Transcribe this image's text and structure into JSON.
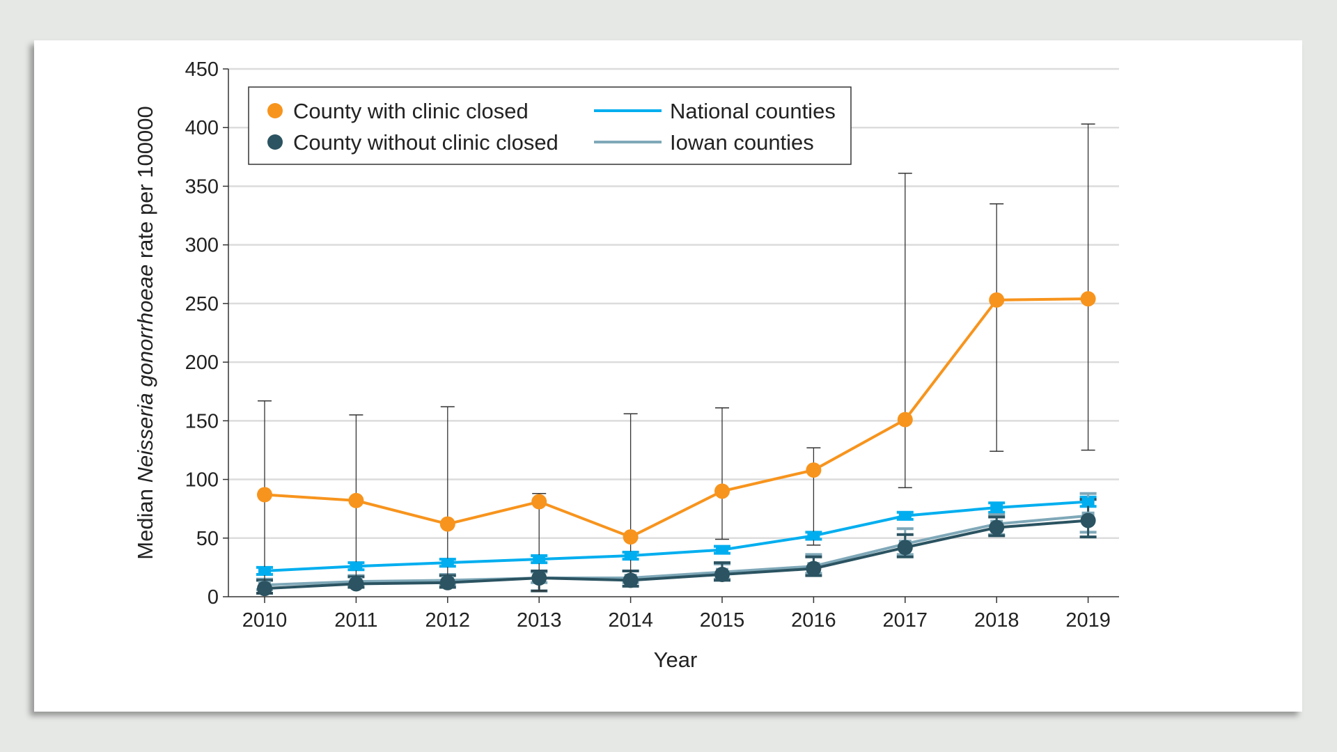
{
  "chart_data": {
    "type": "line",
    "title": "",
    "xlabel": "Year",
    "ylabel_prefix": "Median ",
    "ylabel_italic": "Neisseria gonorrhoeae",
    "ylabel_suffix": " rate per 100000",
    "x": [
      "2010",
      "2011",
      "2012",
      "2013",
      "2014",
      "2015",
      "2016",
      "2017",
      "2018",
      "2019"
    ],
    "ylim": [
      0,
      450
    ],
    "yticks": [
      0,
      50,
      100,
      150,
      200,
      250,
      300,
      350,
      400,
      450
    ],
    "grid": true,
    "legend_position": "top-left",
    "series": [
      {
        "name": "National counties",
        "style": "line-square",
        "color": "#00aeef",
        "values": [
          22,
          26,
          29,
          32,
          35,
          40,
          52,
          69,
          76,
          81
        ],
        "lower": [
          19,
          23,
          26,
          29,
          32,
          37,
          49,
          66,
          72,
          77
        ],
        "upper": [
          25,
          29,
          32,
          35,
          38,
          43,
          55,
          72,
          80,
          85
        ]
      },
      {
        "name": "Iowan counties",
        "style": "line-square",
        "color": "#7fa8b8",
        "values": [
          10,
          13,
          14,
          16,
          16,
          21,
          26,
          45,
          62,
          69
        ],
        "lower": [
          6,
          9,
          10,
          12,
          12,
          15,
          20,
          36,
          53,
          55
        ],
        "upper": [
          15,
          18,
          19,
          21,
          22,
          28,
          36,
          58,
          70,
          88
        ]
      },
      {
        "name": "County without clinic closed",
        "style": "line-circle",
        "color": "#2b5361",
        "values": [
          7,
          11,
          12,
          16,
          14,
          19,
          24,
          42,
          59,
          65
        ],
        "lower": [
          3,
          8,
          8,
          5,
          9,
          14,
          18,
          34,
          52,
          51
        ],
        "upper": [
          14,
          17,
          18,
          22,
          22,
          29,
          34,
          53,
          68,
          83
        ]
      },
      {
        "name": "County with clinic closed",
        "style": "line-circle",
        "color": "#f7941d",
        "values": [
          87,
          82,
          62,
          81,
          51,
          90,
          108,
          151,
          253,
          254
        ],
        "lower": [
          3,
          10,
          15,
          5,
          15,
          49,
          44,
          93,
          124,
          125
        ],
        "upper": [
          167,
          155,
          162,
          88,
          156,
          161,
          127,
          361,
          335,
          403
        ]
      }
    ],
    "legend": [
      {
        "label": "County with clinic closed",
        "marker": "circle",
        "color": "#f7941d"
      },
      {
        "label": "County without clinic closed",
        "marker": "circle",
        "color": "#2b5361"
      },
      {
        "label": "National counties",
        "marker": "line",
        "color": "#00aeef"
      },
      {
        "label": "Iowan counties",
        "marker": "line",
        "color": "#7fa8b8"
      }
    ]
  }
}
